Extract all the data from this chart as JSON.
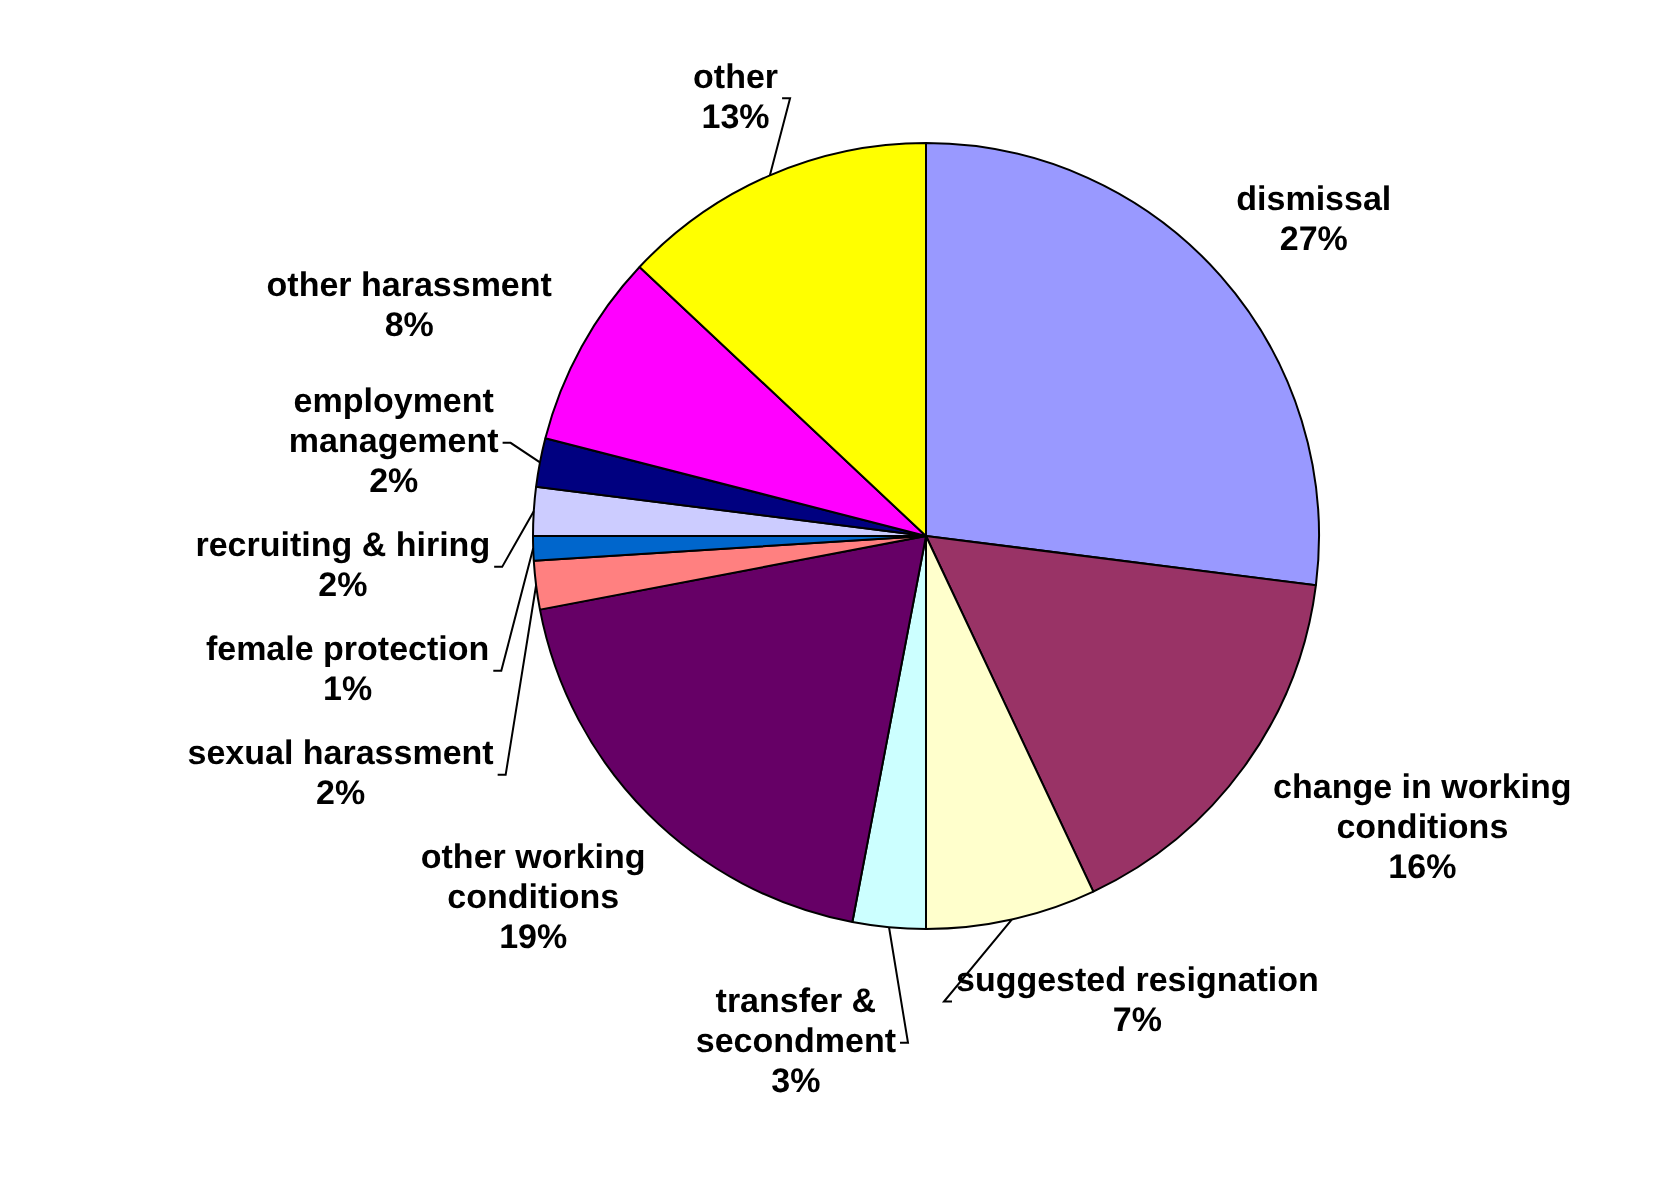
{
  "chart_data": {
    "type": "pie",
    "categories": [
      "dismissal",
      "change in working conditions",
      "suggested resignation",
      "transfer & secondment",
      "other working conditions",
      "sexual harassment",
      "female protection",
      "recruiting & hiring",
      "employment management",
      "other harassment",
      "other"
    ],
    "values": [
      27,
      16,
      7,
      3,
      19,
      2,
      1,
      2,
      2,
      8,
      13
    ],
    "value_labels": [
      "27%",
      "16%",
      "7%",
      "3%",
      "19%",
      "2%",
      "1%",
      "2%",
      "2%",
      "8%",
      "13%"
    ],
    "colors": [
      "#9999ff",
      "#993366",
      "#ffffcc",
      "#ccffff",
      "#660066",
      "#ff8080",
      "#0066cc",
      "#ccccff",
      "#000080",
      "#ff00ff",
      "#ffff00"
    ],
    "legend": false
  }
}
